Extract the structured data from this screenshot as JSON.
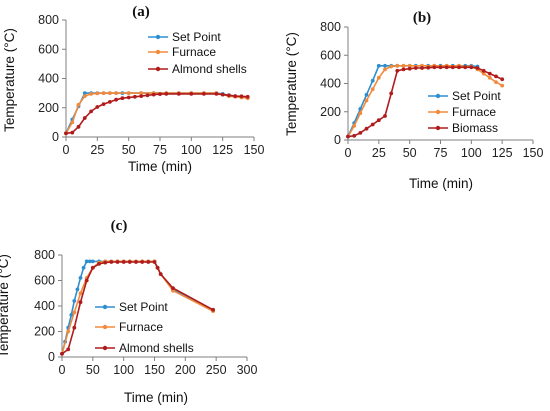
{
  "colors": {
    "set_point": "#2e8fd0",
    "furnace": "#f28a3c",
    "sample": "#b01c1c",
    "axis": "#7f7f7f"
  },
  "chart_data": [
    {
      "type": "line",
      "panel_label": "(a)",
      "xlabel": "Time (min)",
      "ylabel": "Temperature (°C)",
      "xlim": [
        0,
        150
      ],
      "ylim": [
        0,
        800
      ],
      "xticks": [
        0,
        25,
        50,
        75,
        100,
        125,
        150
      ],
      "yticks": [
        0,
        200,
        400,
        600,
        800
      ],
      "legend_position": "top-right",
      "series": [
        {
          "name": "Set Point",
          "x": [
            0,
            5,
            10,
            15,
            20,
            25,
            30,
            35,
            40,
            45,
            50,
            60,
            70,
            80,
            90,
            100,
            110,
            120,
            125,
            130,
            135,
            140,
            145
          ],
          "y": [
            25,
            120,
            210,
            300,
            300,
            300,
            300,
            300,
            300,
            300,
            300,
            300,
            300,
            300,
            300,
            300,
            300,
            300,
            295,
            285,
            280,
            275,
            270
          ]
        },
        {
          "name": "Furnace",
          "x": [
            0,
            5,
            10,
            15,
            20,
            25,
            30,
            35,
            40,
            50,
            60,
            70,
            80,
            90,
            100,
            110,
            120,
            125,
            130,
            135,
            140,
            145
          ],
          "y": [
            25,
            100,
            220,
            280,
            295,
            298,
            300,
            300,
            300,
            300,
            300,
            300,
            300,
            300,
            300,
            300,
            300,
            290,
            280,
            275,
            270,
            265
          ]
        },
        {
          "name": "Almond shells",
          "x": [
            0,
            5,
            10,
            15,
            20,
            25,
            30,
            35,
            40,
            45,
            50,
            55,
            60,
            65,
            70,
            75,
            80,
            90,
            100,
            110,
            120,
            125,
            130,
            135,
            140,
            145
          ],
          "y": [
            25,
            30,
            70,
            130,
            175,
            205,
            225,
            240,
            255,
            265,
            270,
            275,
            280,
            285,
            290,
            293,
            295,
            295,
            295,
            295,
            295,
            290,
            285,
            280,
            278,
            275
          ]
        }
      ]
    },
    {
      "type": "line",
      "panel_label": "(b)",
      "xlabel": "Time (min)",
      "ylabel": "Temperature (°C)",
      "xlim": [
        0,
        150
      ],
      "ylim": [
        0,
        800
      ],
      "xticks": [
        0,
        25,
        50,
        75,
        100,
        125,
        150
      ],
      "yticks": [
        0,
        200,
        400,
        600,
        800
      ],
      "legend_position": "right",
      "series": [
        {
          "name": "Set Point",
          "x": [
            0,
            5,
            10,
            15,
            20,
            25,
            30,
            35,
            40,
            45,
            50,
            55,
            60,
            65,
            70,
            75,
            80,
            85,
            90,
            95,
            100,
            105
          ],
          "y": [
            25,
            120,
            220,
            320,
            420,
            525,
            525,
            525,
            525,
            525,
            525,
            525,
            525,
            525,
            525,
            525,
            525,
            525,
            525,
            525,
            525,
            520
          ]
        },
        {
          "name": "Furnace",
          "x": [
            0,
            5,
            10,
            15,
            20,
            25,
            30,
            35,
            40,
            45,
            50,
            60,
            70,
            80,
            90,
            100,
            105,
            110,
            115,
            120,
            125
          ],
          "y": [
            25,
            100,
            190,
            280,
            360,
            440,
            500,
            520,
            525,
            525,
            525,
            525,
            525,
            525,
            525,
            520,
            500,
            470,
            440,
            410,
            385
          ]
        },
        {
          "name": "Biomass",
          "x": [
            0,
            5,
            10,
            15,
            20,
            25,
            30,
            35,
            40,
            45,
            50,
            55,
            60,
            65,
            70,
            75,
            80,
            85,
            90,
            95,
            100,
            105,
            110,
            115,
            120,
            125
          ],
          "y": [
            25,
            30,
            50,
            80,
            110,
            140,
            170,
            330,
            490,
            500,
            505,
            510,
            510,
            512,
            515,
            515,
            515,
            515,
            515,
            515,
            515,
            510,
            490,
            470,
            450,
            430
          ]
        }
      ]
    },
    {
      "type": "line",
      "panel_label": "(c)",
      "xlabel": "Time (min)",
      "ylabel": "Temperature (°C)",
      "xlim": [
        0,
        300
      ],
      "ylim": [
        0,
        800
      ],
      "xticks": [
        0,
        50,
        100,
        150,
        200,
        250,
        300
      ],
      "yticks": [
        0,
        200,
        400,
        600,
        800
      ],
      "legend_position": "center-right",
      "series": [
        {
          "name": "Set Point",
          "x": [
            0,
            5,
            10,
            15,
            20,
            25,
            30,
            35,
            40,
            45,
            50,
            60,
            70,
            80,
            90,
            100,
            110,
            120,
            130,
            140,
            150,
            155,
            160,
            180,
            245
          ],
          "y": [
            25,
            120,
            230,
            330,
            440,
            530,
            620,
            700,
            750,
            750,
            750,
            750,
            750,
            750,
            750,
            750,
            750,
            750,
            750,
            750,
            750,
            700,
            650,
            530,
            365
          ]
        },
        {
          "name": "Furnace",
          "x": [
            0,
            10,
            20,
            30,
            40,
            50,
            60,
            70,
            80,
            90,
            100,
            110,
            120,
            130,
            140,
            150,
            155,
            160,
            180,
            245
          ],
          "y": [
            25,
            200,
            350,
            500,
            620,
            700,
            740,
            750,
            750,
            750,
            750,
            750,
            750,
            750,
            750,
            750,
            700,
            650,
            520,
            360
          ]
        },
        {
          "name": "Almond shells",
          "x": [
            0,
            10,
            20,
            30,
            40,
            50,
            60,
            70,
            80,
            90,
            100,
            110,
            120,
            130,
            140,
            150,
            155,
            160,
            180,
            245
          ],
          "y": [
            25,
            60,
            230,
            430,
            600,
            700,
            730,
            740,
            745,
            745,
            745,
            745,
            745,
            745,
            745,
            745,
            700,
            650,
            540,
            370
          ]
        }
      ]
    }
  ]
}
